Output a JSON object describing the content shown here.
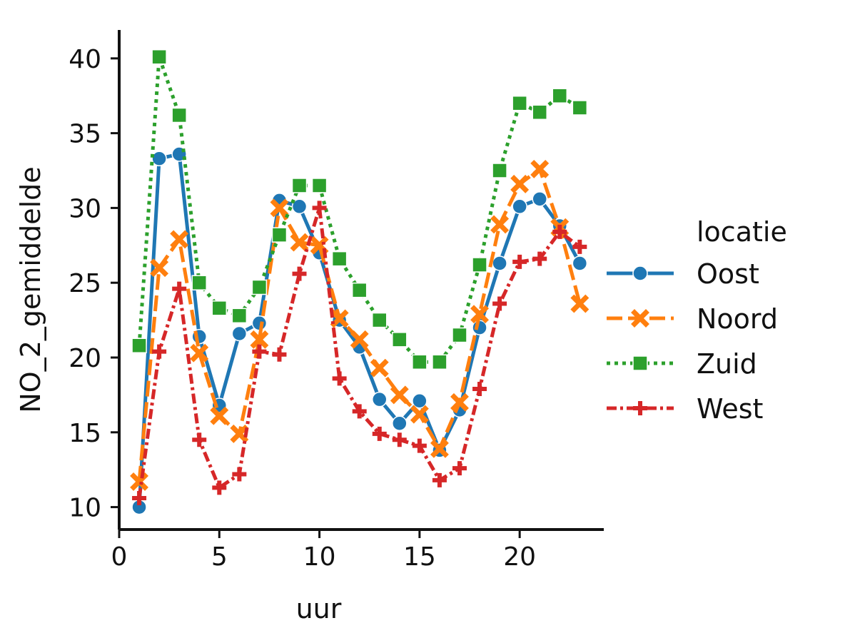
{
  "chart_data": {
    "type": "line",
    "title": "",
    "xlabel": "uur",
    "ylabel": "NO_2_gemiddelde",
    "xlim": [
      0,
      24.2
    ],
    "ylim": [
      8.5,
      41.9
    ],
    "xticks": [
      0,
      5,
      10,
      15,
      20
    ],
    "yticks": [
      10,
      15,
      20,
      25,
      30,
      35,
      40
    ],
    "grid": false,
    "legend": {
      "title": "locatie",
      "placement": "right"
    },
    "x": [
      1,
      2,
      3,
      4,
      5,
      6,
      7,
      8,
      9,
      10,
      11,
      12,
      13,
      14,
      15,
      16,
      17,
      18,
      19,
      20,
      21,
      22,
      23
    ],
    "series": [
      {
        "name": "Oost",
        "color": "#1f77b4",
        "marker": "circle",
        "dash": "solid",
        "values": [
          10.0,
          33.3,
          33.6,
          21.4,
          16.8,
          21.6,
          22.3,
          30.5,
          30.1,
          27.0,
          22.5,
          20.7,
          17.2,
          15.6,
          17.1,
          13.8,
          16.5,
          22.0,
          26.3,
          30.1,
          30.6,
          28.8,
          26.3
        ]
      },
      {
        "name": "Noord",
        "color": "#ff7f0e",
        "marker": "x",
        "dash": "dashed",
        "values": [
          11.7,
          26.0,
          27.9,
          20.3,
          16.1,
          14.9,
          21.2,
          30.0,
          27.7,
          27.5,
          22.6,
          21.2,
          19.3,
          17.5,
          16.2,
          13.9,
          17.0,
          22.9,
          28.9,
          31.6,
          32.6,
          28.7,
          23.6
        ]
      },
      {
        "name": "Zuid",
        "color": "#2ca02c",
        "marker": "square",
        "dash": "dotted",
        "values": [
          20.8,
          40.1,
          36.2,
          25.0,
          23.3,
          22.8,
          24.7,
          28.2,
          31.5,
          31.5,
          26.6,
          24.5,
          22.5,
          21.2,
          19.7,
          19.7,
          21.5,
          26.2,
          32.5,
          37.0,
          36.4,
          37.5,
          36.7
        ]
      },
      {
        "name": "West",
        "color": "#d62728",
        "marker": "plus",
        "dash": "dashdot",
        "values": [
          10.6,
          20.4,
          24.6,
          14.5,
          11.3,
          12.2,
          20.4,
          20.2,
          25.6,
          30.0,
          18.6,
          16.4,
          14.9,
          14.5,
          14.1,
          11.8,
          12.6,
          17.9,
          23.6,
          26.4,
          26.6,
          28.4,
          27.4
        ]
      }
    ]
  }
}
